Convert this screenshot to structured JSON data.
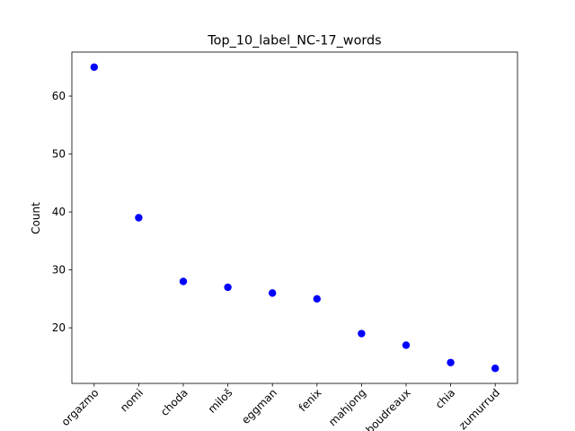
{
  "chart_data": {
    "type": "scatter",
    "title": "Top_10_label_NC-17_words",
    "xlabel": "",
    "ylabel": "Count",
    "categories": [
      "orgazmo",
      "nomi",
      "choda",
      "miloš",
      "eggman",
      "fenix",
      "mahjong",
      "boudreaux",
      "chia",
      "zumurrud"
    ],
    "values": [
      65,
      39,
      28,
      27,
      26,
      25,
      19,
      17,
      14,
      13
    ],
    "ylim": [
      10.4,
      67.6
    ],
    "yticks": [
      20,
      30,
      40,
      50,
      60
    ],
    "ytick_labels": [
      "20",
      "30",
      "40",
      "50",
      "60"
    ],
    "marker_color": "#0000ff",
    "grid": false,
    "legend": "none"
  }
}
